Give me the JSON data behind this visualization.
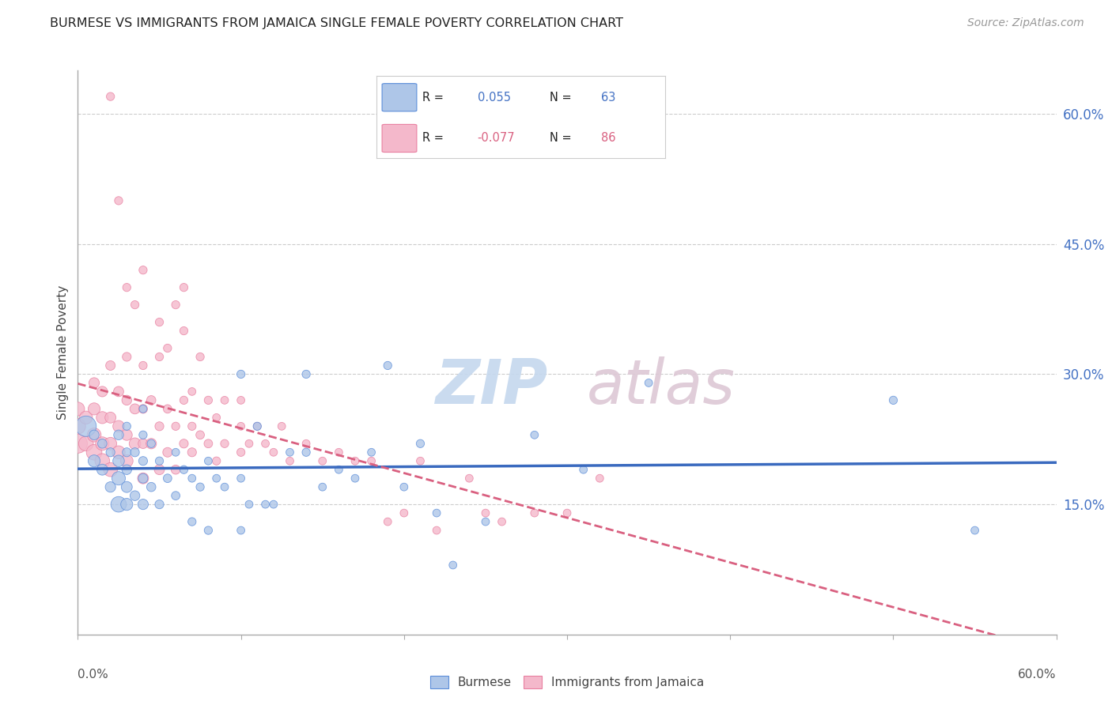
{
  "title": "BURMESE VS IMMIGRANTS FROM JAMAICA SINGLE FEMALE POVERTY CORRELATION CHART",
  "source": "Source: ZipAtlas.com",
  "ylabel": "Single Female Poverty",
  "ytick_vals": [
    0.6,
    0.45,
    0.3,
    0.15
  ],
  "xlim": [
    0.0,
    0.6
  ],
  "ylim": [
    0.0,
    0.65
  ],
  "blue_R": 0.055,
  "blue_N": 63,
  "pink_R": -0.077,
  "pink_N": 86,
  "blue_color": "#aec6e8",
  "pink_color": "#f4b8cb",
  "blue_edge_color": "#5b8dd9",
  "pink_edge_color": "#e87fa0",
  "blue_line_color": "#3a6abf",
  "pink_line_color": "#d96080",
  "legend_R_color": "#000000",
  "legend_val_color_blue": "#4472c4",
  "legend_val_color_pink": "#d96080",
  "watermark_zip_color": "#c5d8ee",
  "watermark_atlas_color": "#ddc8d5",
  "legend_label_blue": "Burmese",
  "legend_label_pink": "Immigrants from Jamaica",
  "blue_scatter_x": [
    0.005,
    0.01,
    0.01,
    0.015,
    0.015,
    0.02,
    0.02,
    0.025,
    0.025,
    0.025,
    0.025,
    0.03,
    0.03,
    0.03,
    0.03,
    0.03,
    0.035,
    0.035,
    0.04,
    0.04,
    0.04,
    0.04,
    0.04,
    0.045,
    0.045,
    0.05,
    0.05,
    0.055,
    0.06,
    0.06,
    0.065,
    0.07,
    0.07,
    0.075,
    0.08,
    0.08,
    0.085,
    0.09,
    0.1,
    0.1,
    0.1,
    0.105,
    0.11,
    0.115,
    0.12,
    0.13,
    0.14,
    0.14,
    0.15,
    0.16,
    0.17,
    0.18,
    0.19,
    0.2,
    0.21,
    0.22,
    0.23,
    0.25,
    0.28,
    0.31,
    0.35,
    0.5,
    0.55
  ],
  "blue_scatter_y": [
    0.24,
    0.2,
    0.23,
    0.19,
    0.22,
    0.17,
    0.21,
    0.15,
    0.18,
    0.2,
    0.23,
    0.15,
    0.17,
    0.19,
    0.21,
    0.24,
    0.16,
    0.21,
    0.15,
    0.18,
    0.2,
    0.23,
    0.26,
    0.17,
    0.22,
    0.15,
    0.2,
    0.18,
    0.16,
    0.21,
    0.19,
    0.13,
    0.18,
    0.17,
    0.12,
    0.2,
    0.18,
    0.17,
    0.12,
    0.18,
    0.3,
    0.15,
    0.24,
    0.15,
    0.15,
    0.21,
    0.21,
    0.3,
    0.17,
    0.19,
    0.18,
    0.21,
    0.31,
    0.17,
    0.22,
    0.14,
    0.08,
    0.13,
    0.23,
    0.19,
    0.29,
    0.27,
    0.12
  ],
  "blue_scatter_sizes": [
    350,
    120,
    80,
    100,
    70,
    90,
    65,
    200,
    150,
    110,
    80,
    120,
    100,
    80,
    65,
    55,
    80,
    65,
    90,
    75,
    65,
    55,
    50,
    70,
    55,
    65,
    55,
    60,
    60,
    50,
    55,
    55,
    50,
    55,
    55,
    50,
    50,
    50,
    50,
    50,
    55,
    50,
    55,
    50,
    50,
    50,
    55,
    55,
    50,
    50,
    50,
    50,
    55,
    50,
    55,
    50,
    50,
    50,
    50,
    50,
    50,
    55,
    50
  ],
  "pink_scatter_x": [
    0.0,
    0.0,
    0.0,
    0.005,
    0.005,
    0.01,
    0.01,
    0.01,
    0.01,
    0.015,
    0.015,
    0.015,
    0.015,
    0.02,
    0.02,
    0.02,
    0.02,
    0.025,
    0.025,
    0.025,
    0.03,
    0.03,
    0.03,
    0.03,
    0.035,
    0.035,
    0.04,
    0.04,
    0.04,
    0.04,
    0.045,
    0.045,
    0.05,
    0.05,
    0.05,
    0.055,
    0.055,
    0.06,
    0.06,
    0.065,
    0.065,
    0.07,
    0.07,
    0.07,
    0.075,
    0.08,
    0.08,
    0.085,
    0.085,
    0.09,
    0.09,
    0.1,
    0.1,
    0.1,
    0.105,
    0.11,
    0.115,
    0.12,
    0.125,
    0.13,
    0.14,
    0.15,
    0.16,
    0.17,
    0.18,
    0.19,
    0.2,
    0.21,
    0.22,
    0.24,
    0.25,
    0.26,
    0.28,
    0.3,
    0.32,
    0.035,
    0.04,
    0.05,
    0.06,
    0.065,
    0.02,
    0.025,
    0.03,
    0.055,
    0.065,
    0.075
  ],
  "pink_scatter_y": [
    0.22,
    0.24,
    0.26,
    0.22,
    0.25,
    0.21,
    0.23,
    0.26,
    0.29,
    0.2,
    0.22,
    0.25,
    0.28,
    0.19,
    0.22,
    0.25,
    0.31,
    0.21,
    0.24,
    0.28,
    0.2,
    0.23,
    0.27,
    0.32,
    0.22,
    0.26,
    0.18,
    0.22,
    0.26,
    0.31,
    0.22,
    0.27,
    0.19,
    0.24,
    0.36,
    0.21,
    0.26,
    0.19,
    0.24,
    0.22,
    0.27,
    0.21,
    0.24,
    0.28,
    0.23,
    0.22,
    0.27,
    0.2,
    0.25,
    0.22,
    0.27,
    0.21,
    0.24,
    0.27,
    0.22,
    0.24,
    0.22,
    0.21,
    0.24,
    0.2,
    0.22,
    0.2,
    0.21,
    0.2,
    0.2,
    0.13,
    0.14,
    0.2,
    0.12,
    0.18,
    0.14,
    0.13,
    0.14,
    0.14,
    0.18,
    0.38,
    0.42,
    0.32,
    0.38,
    0.4,
    0.62,
    0.5,
    0.4,
    0.33,
    0.35,
    0.32
  ],
  "pink_scatter_sizes": [
    300,
    200,
    150,
    180,
    140,
    200,
    160,
    120,
    90,
    180,
    150,
    120,
    90,
    160,
    130,
    100,
    75,
    140,
    110,
    85,
    130,
    100,
    80,
    65,
    110,
    85,
    100,
    80,
    65,
    55,
    90,
    70,
    85,
    65,
    55,
    75,
    60,
    70,
    55,
    65,
    55,
    65,
    55,
    50,
    60,
    60,
    55,
    55,
    50,
    55,
    50,
    55,
    50,
    50,
    50,
    50,
    50,
    50,
    50,
    50,
    50,
    50,
    50,
    50,
    50,
    50,
    50,
    50,
    50,
    50,
    50,
    50,
    50,
    50,
    50,
    55,
    55,
    55,
    55,
    55,
    55,
    55,
    55,
    55,
    55,
    55
  ]
}
